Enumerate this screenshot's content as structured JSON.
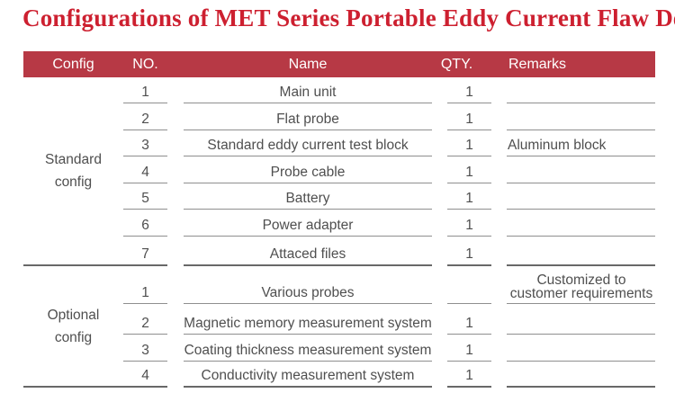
{
  "title": "Configurations of MET Series Portable Eddy Current Flaw Detector",
  "colors": {
    "title_red": "#CD2030",
    "header_bar_bg": "#B73945",
    "header_text": "#FFFFFF",
    "body_text": "#4F4F4F",
    "row_line": "#8F8F8F"
  },
  "table": {
    "headers": [
      "Config",
      "NO.",
      "Name",
      "QTY.",
      "Remarks"
    ],
    "sections": [
      {
        "config": "Standard config",
        "rows": [
          {
            "no": "1",
            "name": "Main unit",
            "qty": "1",
            "remarks": ""
          },
          {
            "no": "2",
            "name": "Flat probe",
            "qty": "1",
            "remarks": ""
          },
          {
            "no": "3",
            "name": "Standard eddy current test block",
            "qty": "1",
            "remarks": "Aluminum block"
          },
          {
            "no": "4",
            "name": "Probe cable",
            "qty": "1",
            "remarks": ""
          },
          {
            "no": "5",
            "name": "Battery",
            "qty": "1",
            "remarks": ""
          },
          {
            "no": "6",
            "name": "Power adapter",
            "qty": "1",
            "remarks": ""
          },
          {
            "no": "7",
            "name": "Attaced files",
            "qty": "1",
            "remarks": ""
          }
        ]
      },
      {
        "config": "Optional config",
        "rows": [
          {
            "no": "1",
            "name": "Various probes",
            "qty": "",
            "remarks": "Customized to customer requirements",
            "remarks_align": "center"
          },
          {
            "no": "2",
            "name": "Magnetic memory measurement system",
            "qty": "1",
            "remarks": ""
          },
          {
            "no": "3",
            "name": "Coating thickness measurement system",
            "qty": "1",
            "remarks": ""
          },
          {
            "no": "4",
            "name": "Conductivity measurement system",
            "qty": "1",
            "remarks": ""
          }
        ]
      }
    ]
  }
}
